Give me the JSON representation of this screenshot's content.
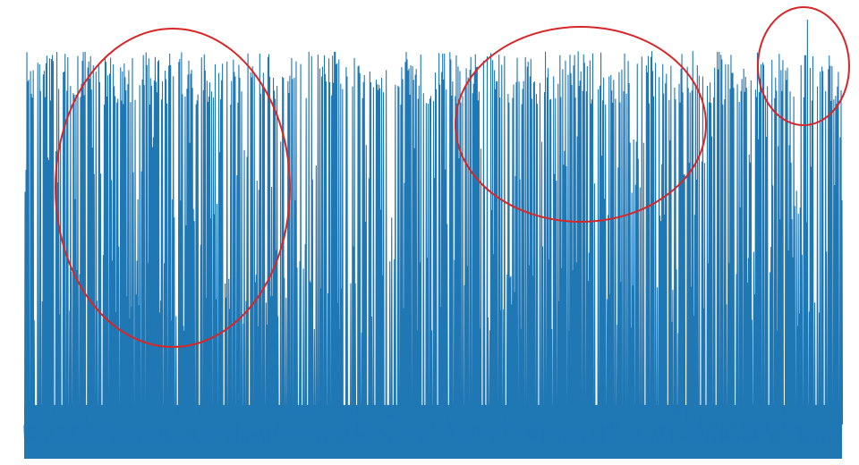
{
  "chart_data": {
    "type": "line",
    "title": "",
    "xlabel": "",
    "ylabel": "",
    "axes_visible": false,
    "grid": false,
    "legend": "none",
    "ylim": [
      0,
      1
    ],
    "line_color": "#1f77b4",
    "annotation_color": "#d62728",
    "sample_count": 900,
    "levels": {
      "baseline_low": 0.03,
      "baseline_high": 0.12,
      "mid_band": 0.38,
      "upper_band": 0.62,
      "peak_typical": 0.85,
      "peak_max": 0.98
    },
    "annotations": [
      {
        "shape": "ellipse",
        "label": ""
      },
      {
        "shape": "ellipse",
        "label": ""
      },
      {
        "shape": "ellipse",
        "label": ""
      }
    ]
  }
}
